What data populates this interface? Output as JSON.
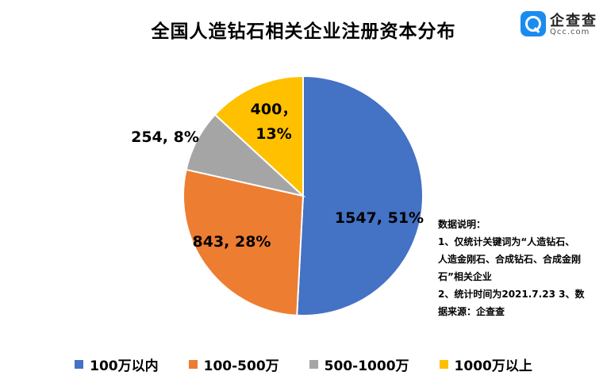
{
  "title": "全国人造钻石相关企业注册资本分布",
  "logo": {
    "name": "企查查",
    "domain": "Qcc.com",
    "color": "#1a8cf0"
  },
  "note": {
    "lines": [
      "数据说明：",
      "1、仅统计关键词为“人造钻石、",
      "人造金刚石、合成钻石、合成金刚",
      "石”相关企业",
      "2、统计时间为2021.7.23  3、数",
      "据来源：企查查"
    ]
  },
  "chart_data": {
    "type": "pie",
    "title": "全国人造钻石相关企业注册资本分布",
    "slices": [
      {
        "label": "100万以内",
        "value": 1547,
        "percent": "51%",
        "color": "#4472c4",
        "data_label": "1547, 51%"
      },
      {
        "label": "100-500万",
        "value": 843,
        "percent": "28%",
        "color": "#ed7d31",
        "data_label": "843, 28%"
      },
      {
        "label": "500-1000万",
        "value": 254,
        "percent": "8%",
        "color": "#a5a5a5",
        "data_label": "254, 8%"
      },
      {
        "label": "1000万以上",
        "value": 400,
        "percent": "13%",
        "color": "#ffc000",
        "data_label_lines": [
          "400，",
          "13%"
        ]
      }
    ],
    "legend_position": "bottom"
  }
}
